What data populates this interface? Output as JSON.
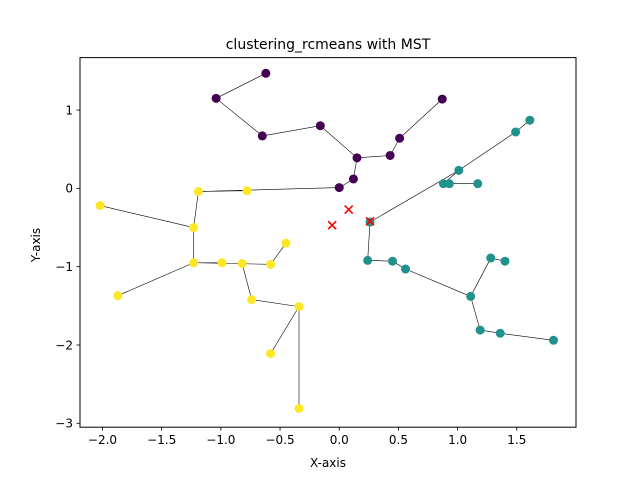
{
  "chart_data": {
    "type": "scatter",
    "title": "clustering_rcmeans with MST",
    "xlabel": "X-axis",
    "ylabel": "Y-axis",
    "xlim": [
      -2.19,
      2.0
    ],
    "ylim": [
      -3.05,
      1.67
    ],
    "xticks": [
      -2.0,
      -1.5,
      -1.0,
      -0.5,
      0.0,
      0.5,
      1.0,
      1.5
    ],
    "xtick_labels": [
      "−2.0",
      "−1.5",
      "−1.0",
      "−0.5",
      "0.0",
      "0.5",
      "1.0",
      "1.5"
    ],
    "yticks": [
      -3,
      -2,
      -1,
      0,
      1
    ],
    "ytick_labels": [
      "−3",
      "−2",
      "−1",
      "0",
      "1"
    ],
    "grid": false,
    "colors": {
      "cluster_purple": "#440154",
      "cluster_teal": "#21918c",
      "cluster_yellow": "#fde725",
      "center_marker": "#ff0000",
      "edge": "#000000"
    },
    "points": [
      {
        "x": -0.62,
        "y": 1.47,
        "cluster": 0
      },
      {
        "x": -1.04,
        "y": 1.15,
        "cluster": 0
      },
      {
        "x": -0.65,
        "y": 0.67,
        "cluster": 0
      },
      {
        "x": -0.16,
        "y": 0.8,
        "cluster": 0
      },
      {
        "x": 0.15,
        "y": 0.39,
        "cluster": 0
      },
      {
        "x": 0.43,
        "y": 0.42,
        "cluster": 0
      },
      {
        "x": 0.51,
        "y": 0.64,
        "cluster": 0
      },
      {
        "x": 0.87,
        "y": 1.14,
        "cluster": 0
      },
      {
        "x": 0.12,
        "y": 0.12,
        "cluster": 0
      },
      {
        "x": 0.0,
        "y": 0.01,
        "cluster": 0
      },
      {
        "x": 0.26,
        "y": -0.43,
        "cluster": 1
      },
      {
        "x": 0.88,
        "y": 0.06,
        "cluster": 1
      },
      {
        "x": 0.93,
        "y": 0.06,
        "cluster": 1
      },
      {
        "x": 1.01,
        "y": 0.23,
        "cluster": 1
      },
      {
        "x": 1.17,
        "y": 0.06,
        "cluster": 1
      },
      {
        "x": 1.49,
        "y": 0.72,
        "cluster": 1
      },
      {
        "x": 1.61,
        "y": 0.87,
        "cluster": 1
      },
      {
        "x": 0.24,
        "y": -0.92,
        "cluster": 1
      },
      {
        "x": 0.45,
        "y": -0.93,
        "cluster": 1
      },
      {
        "x": 0.56,
        "y": -1.03,
        "cluster": 1
      },
      {
        "x": 1.11,
        "y": -1.38,
        "cluster": 1
      },
      {
        "x": 1.28,
        "y": -0.89,
        "cluster": 1
      },
      {
        "x": 1.4,
        "y": -0.93,
        "cluster": 1
      },
      {
        "x": 1.19,
        "y": -1.81,
        "cluster": 1
      },
      {
        "x": 1.36,
        "y": -1.85,
        "cluster": 1
      },
      {
        "x": 1.81,
        "y": -1.94,
        "cluster": 1
      },
      {
        "x": -2.02,
        "y": -0.22,
        "cluster": 2
      },
      {
        "x": -1.87,
        "y": -1.37,
        "cluster": 2
      },
      {
        "x": -1.23,
        "y": -0.5,
        "cluster": 2
      },
      {
        "x": -1.19,
        "y": -0.04,
        "cluster": 2
      },
      {
        "x": -0.78,
        "y": -0.03,
        "cluster": 2
      },
      {
        "x": -1.23,
        "y": -0.95,
        "cluster": 2
      },
      {
        "x": -0.99,
        "y": -0.95,
        "cluster": 2
      },
      {
        "x": -0.82,
        "y": -0.96,
        "cluster": 2
      },
      {
        "x": -0.58,
        "y": -0.97,
        "cluster": 2
      },
      {
        "x": -0.45,
        "y": -0.7,
        "cluster": 2
      },
      {
        "x": -0.74,
        "y": -1.42,
        "cluster": 2
      },
      {
        "x": -0.34,
        "y": -1.51,
        "cluster": 2
      },
      {
        "x": -0.58,
        "y": -2.11,
        "cluster": 2
      },
      {
        "x": -0.34,
        "y": -2.81,
        "cluster": 2
      }
    ],
    "edges": [
      [
        0,
        1
      ],
      [
        1,
        2
      ],
      [
        2,
        3
      ],
      [
        3,
        4
      ],
      [
        4,
        5
      ],
      [
        5,
        6
      ],
      [
        6,
        7
      ],
      [
        4,
        8
      ],
      [
        8,
        9
      ],
      [
        9,
        29
      ],
      [
        29,
        28
      ],
      [
        28,
        26
      ],
      [
        28,
        31
      ],
      [
        31,
        27
      ],
      [
        31,
        32
      ],
      [
        31,
        34
      ],
      [
        34,
        35
      ],
      [
        33,
        36
      ],
      [
        36,
        37
      ],
      [
        37,
        38
      ],
      [
        37,
        39
      ],
      [
        29,
        30
      ],
      [
        10,
        13
      ],
      [
        13,
        11
      ],
      [
        11,
        12
      ],
      [
        12,
        14
      ],
      [
        13,
        15
      ],
      [
        15,
        16
      ],
      [
        10,
        17
      ],
      [
        17,
        18
      ],
      [
        18,
        19
      ],
      [
        19,
        20
      ],
      [
        20,
        21
      ],
      [
        21,
        22
      ],
      [
        20,
        23
      ],
      [
        23,
        24
      ],
      [
        24,
        25
      ]
    ],
    "centers": [
      {
        "x": -0.06,
        "y": -0.47
      },
      {
        "x": 0.08,
        "y": -0.27
      },
      {
        "x": 0.26,
        "y": -0.42
      }
    ]
  }
}
